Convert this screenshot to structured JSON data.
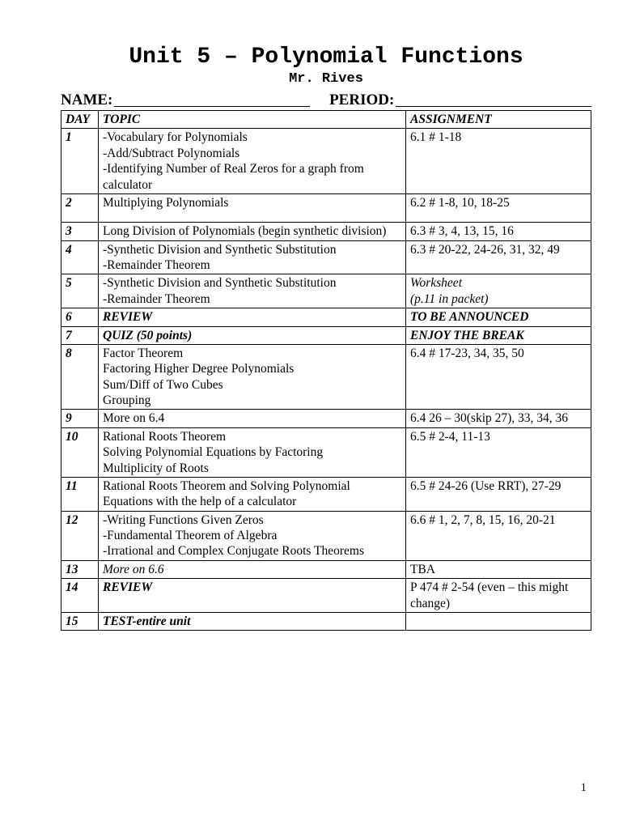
{
  "title": "Unit 5 – Polynomial Functions",
  "subtitle": "Mr. Rives",
  "labels": {
    "name": "NAME:",
    "period": "PERIOD:"
  },
  "columns": {
    "day": "DAY",
    "topic": "TOPIC",
    "assignment": "ASSIGNMENT"
  },
  "rows": [
    {
      "day": "1",
      "topic": "-Vocabulary for Polynomials\n-Add/Subtract Polynomials\n-Identifying Number of Real Zeros for a graph from calculator",
      "assignment": "6.1 # 1-18"
    },
    {
      "day": "2",
      "topic": "Multiplying Polynomials",
      "assignment": "6.2 # 1-8, 10, 18-25",
      "tall": true
    },
    {
      "day": "3",
      "topic": "Long Division of Polynomials (begin synthetic division)",
      "assignment": "6.3 # 3, 4, 13, 15, 16"
    },
    {
      "day": "4",
      "topic": "-Synthetic Division and Synthetic Substitution\n-Remainder Theorem",
      "assignment": "6.3 # 20-22, 24-26, 31, 32, 49"
    },
    {
      "day": "5",
      "topic": "-Synthetic Division and Synthetic Substitution\n-Remainder Theorem",
      "assignment": "Worksheet\n(p.11 in packet)",
      "assignment_italic": true
    },
    {
      "day": "6",
      "topic": "REVIEW",
      "topic_bi": true,
      "assignment": "TO BE ANNOUNCED",
      "assignment_bi": true
    },
    {
      "day": "7",
      "topic": "QUIZ (50 points)",
      "topic_bi": true,
      "assignment": "ENJOY THE BREAK",
      "assignment_bi": true
    },
    {
      "day": "8",
      "topic": "Factor Theorem\nFactoring Higher Degree Polynomials\nSum/Diff of Two Cubes\nGrouping",
      "assignment": "6.4 # 17-23, 34, 35, 50"
    },
    {
      "day": "9",
      "topic": "More on 6.4",
      "assignment": "6.4 26 – 30(skip 27), 33, 34, 36"
    },
    {
      "day": "10",
      "topic": "Rational Roots Theorem\nSolving Polynomial Equations by Factoring\nMultiplicity of Roots",
      "assignment": "6.5 # 2-4, 11-13"
    },
    {
      "day": "11",
      "topic": "Rational Roots Theorem and Solving Polynomial Equations with the help of a calculator",
      "assignment": "6.5 # 24-26 (Use RRT), 27-29"
    },
    {
      "day": "12",
      "topic": "-Writing Functions Given Zeros\n-Fundamental Theorem of Algebra\n-Irrational and Complex Conjugate Roots Theorems",
      "assignment": "6.6 # 1, 2, 7, 8, 15, 16, 20-21"
    },
    {
      "day": "13",
      "topic": "More on 6.6",
      "topic_italic": true,
      "assignment": "TBA"
    },
    {
      "day": "14",
      "topic": "REVIEW",
      "topic_bi": true,
      "assignment": "P 474 # 2-54 (even – this might change)"
    },
    {
      "day": "15",
      "topic": "TEST-entire unit",
      "topic_bi": true,
      "assignment": ""
    }
  ],
  "page_number": "1"
}
